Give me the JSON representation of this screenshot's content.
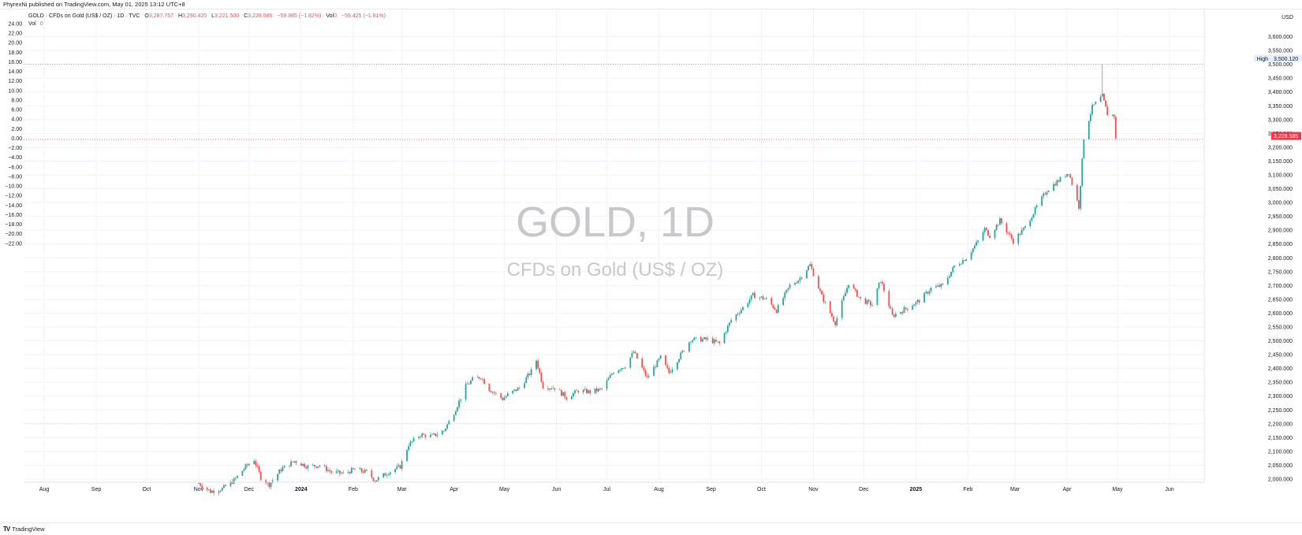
{
  "header": {
    "published_text": "PhyrexNi published on TradingView.com, May 01, 2025 13:12 UTC+8"
  },
  "legend": {
    "symbol_text": "GOLD · CFDs on Gold (US$ / OZ) · 1D · TVC",
    "o_label": "O",
    "o_value": "3,287.757",
    "h_label": "H",
    "h_value": "3,290.420",
    "l_label": "L",
    "l_value": "3,221.500",
    "c_label": "C",
    "c_value": "3,228.585",
    "change": "−59.985 (−1.82%)",
    "vol_label": "Vol",
    "vol_value": "0",
    "vol_change": "−59.425 (−1.81%)",
    "vol_row_label": "Vol",
    "vol_row_value": "0"
  },
  "watermark": {
    "title": "GOLD, 1D",
    "subtitle": "CFDs on Gold (US$ / OZ)"
  },
  "price_axis": {
    "currency": "USD",
    "high_label": "High",
    "high_value": "3,500.120",
    "last_value": "3,228.585"
  },
  "footer": {
    "brand": "TradingView",
    "left_icon_text": "Z",
    "right_icon_text": "A"
  },
  "colors": {
    "up": "#26a69a",
    "down": "#ef5350",
    "grid": "#f0f3fa",
    "last_price": "#f23645",
    "high_badge": "#e3effd"
  },
  "chart_data": {
    "type": "candlestick",
    "symbol": "GOLD",
    "interval": "1D",
    "right_axis": {
      "ticks": [
        "3,600.000",
        "3,550.000",
        "3,500.000",
        "3,450.000",
        "3,400.000",
        "3,350.000",
        "3,300.000",
        "3,250.000",
        "3,200.000",
        "3,150.000",
        "3,100.000",
        "3,050.000",
        "3,000.000",
        "2,950.000",
        "2,900.000",
        "2,850.000",
        "2,800.000",
        "2,750.000",
        "2,700.000",
        "2,650.000",
        "2,600.000",
        "2,550.000",
        "2,500.000",
        "2,450.000",
        "2,400.000",
        "2,350.000",
        "2,300.000",
        "2,250.000",
        "2,200.000",
        "2,150.000",
        "2,100.000",
        "2,050.000",
        "2,000.000"
      ],
      "range": [
        2000,
        3650
      ]
    },
    "left_axis": {
      "ticks": [
        "24.00",
        "22.00",
        "20.00",
        "18.00",
        "16.00",
        "14.00",
        "12.00",
        "10.00",
        "8.00",
        "6.00",
        "4.00",
        "2.00",
        "0.00",
        "−2.00",
        "−4.00",
        "−6.00",
        "−8.00",
        "−10.00",
        "−12.00",
        "−14.00",
        "−16.00",
        "−18.00",
        "−20.00",
        "−22.00"
      ]
    },
    "x_axis": {
      "labels": [
        "Aug",
        "Sep",
        "Oct",
        "Nov",
        "Dec",
        "2024",
        "Feb",
        "Mar",
        "Apr",
        "May",
        "Jun",
        "Jul",
        "Aug",
        "Sep",
        "Oct",
        "Nov",
        "Dec",
        "2025",
        "Feb",
        "Mar",
        "Apr",
        "May",
        "Jun"
      ],
      "bold": [
        "2024",
        "2025"
      ],
      "range": [
        "2023-08-01",
        "2025-06-01"
      ]
    },
    "high_line": 3500.12,
    "last_price": 3228.585,
    "dotted_level": 2200,
    "price_path": [
      [
        "2023-11-01",
        1985
      ],
      [
        "2023-11-08",
        1955
      ],
      [
        "2023-11-15",
        1965
      ],
      [
        "2023-11-22",
        1995
      ],
      [
        "2023-11-29",
        2045
      ],
      [
        "2023-12-04",
        2070
      ],
      [
        "2023-12-08",
        2005
      ],
      [
        "2023-12-13",
        1980
      ],
      [
        "2023-12-20",
        2035
      ],
      [
        "2023-12-28",
        2065
      ],
      [
        "2024-01-05",
        2045
      ],
      [
        "2024-01-12",
        2050
      ],
      [
        "2024-01-19",
        2025
      ],
      [
        "2024-01-26",
        2020
      ],
      [
        "2024-02-02",
        2035
      ],
      [
        "2024-02-09",
        2025
      ],
      [
        "2024-02-14",
        1995
      ],
      [
        "2024-02-22",
        2025
      ],
      [
        "2024-02-29",
        2045
      ],
      [
        "2024-03-05",
        2125
      ],
      [
        "2024-03-12",
        2160
      ],
      [
        "2024-03-19",
        2155
      ],
      [
        "2024-03-26",
        2175
      ],
      [
        "2024-04-01",
        2240
      ],
      [
        "2024-04-08",
        2335
      ],
      [
        "2024-04-12",
        2360
      ],
      [
        "2024-04-17",
        2370
      ],
      [
        "2024-04-22",
        2325
      ],
      [
        "2024-04-30",
        2290
      ],
      [
        "2024-05-03",
        2305
      ],
      [
        "2024-05-10",
        2330
      ],
      [
        "2024-05-17",
        2390
      ],
      [
        "2024-05-20",
        2430
      ],
      [
        "2024-05-24",
        2335
      ],
      [
        "2024-05-31",
        2330
      ],
      [
        "2024-06-07",
        2295
      ],
      [
        "2024-06-14",
        2320
      ],
      [
        "2024-06-21",
        2315
      ],
      [
        "2024-06-28",
        2325
      ],
      [
        "2024-07-05",
        2390
      ],
      [
        "2024-07-12",
        2410
      ],
      [
        "2024-07-17",
        2460
      ],
      [
        "2024-07-25",
        2365
      ],
      [
        "2024-08-02",
        2440
      ],
      [
        "2024-08-07",
        2385
      ],
      [
        "2024-08-14",
        2450
      ],
      [
        "2024-08-20",
        2505
      ],
      [
        "2024-08-30",
        2505
      ],
      [
        "2024-09-06",
        2490
      ],
      [
        "2024-09-13",
        2575
      ],
      [
        "2024-09-20",
        2620
      ],
      [
        "2024-09-26",
        2665
      ],
      [
        "2024-10-04",
        2650
      ],
      [
        "2024-10-10",
        2610
      ],
      [
        "2024-10-18",
        2700
      ],
      [
        "2024-10-23",
        2720
      ],
      [
        "2024-10-30",
        2775
      ],
      [
        "2024-11-06",
        2660
      ],
      [
        "2024-11-14",
        2565
      ],
      [
        "2024-11-22",
        2710
      ],
      [
        "2024-11-29",
        2650
      ],
      [
        "2024-12-06",
        2630
      ],
      [
        "2024-12-11",
        2720
      ],
      [
        "2024-12-18",
        2590
      ],
      [
        "2024-12-27",
        2620
      ],
      [
        "2025-01-03",
        2645
      ],
      [
        "2025-01-10",
        2690
      ],
      [
        "2025-01-17",
        2700
      ],
      [
        "2025-01-24",
        2770
      ],
      [
        "2025-01-31",
        2800
      ],
      [
        "2025-02-07",
        2860
      ],
      [
        "2025-02-11",
        2905
      ],
      [
        "2025-02-14",
        2880
      ],
      [
        "2025-02-20",
        2935
      ],
      [
        "2025-02-28",
        2860
      ],
      [
        "2025-03-07",
        2910
      ],
      [
        "2025-03-14",
        2985
      ],
      [
        "2025-03-20",
        3045
      ],
      [
        "2025-03-28",
        3085
      ],
      [
        "2025-04-02",
        3110
      ],
      [
        "2025-04-08",
        2985
      ],
      [
        "2025-04-11",
        3235
      ],
      [
        "2025-04-16",
        3345
      ],
      [
        "2025-04-22",
        3385
      ],
      [
        "2025-04-25",
        3320
      ],
      [
        "2025-04-29",
        3315
      ],
      [
        "2025-04-30",
        3228.585
      ]
    ]
  }
}
